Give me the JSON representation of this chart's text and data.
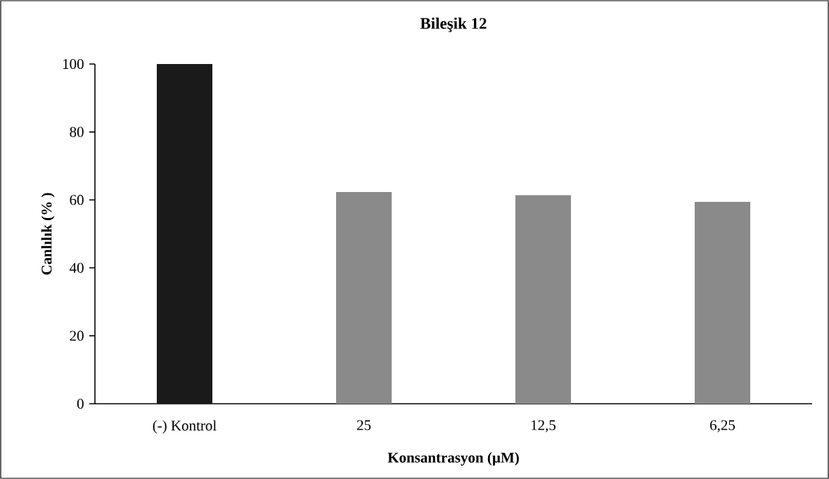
{
  "chart_data": {
    "type": "bar",
    "title": "Bileşik 12",
    "xlabel": "Konsantrasyon (µM)",
    "ylabel": "Canlılık (% )",
    "categories": [
      "(-) Kontrol",
      "25",
      "12,5",
      "6,25"
    ],
    "values": [
      100,
      62.3,
      61.4,
      59.4
    ],
    "colors": [
      "#1a1a1a",
      "#8a8a8a",
      "#8a8a8a",
      "#8a8a8a"
    ],
    "ylim": [
      0,
      100
    ],
    "yticks": [
      0,
      20,
      40,
      60,
      80,
      100
    ]
  }
}
